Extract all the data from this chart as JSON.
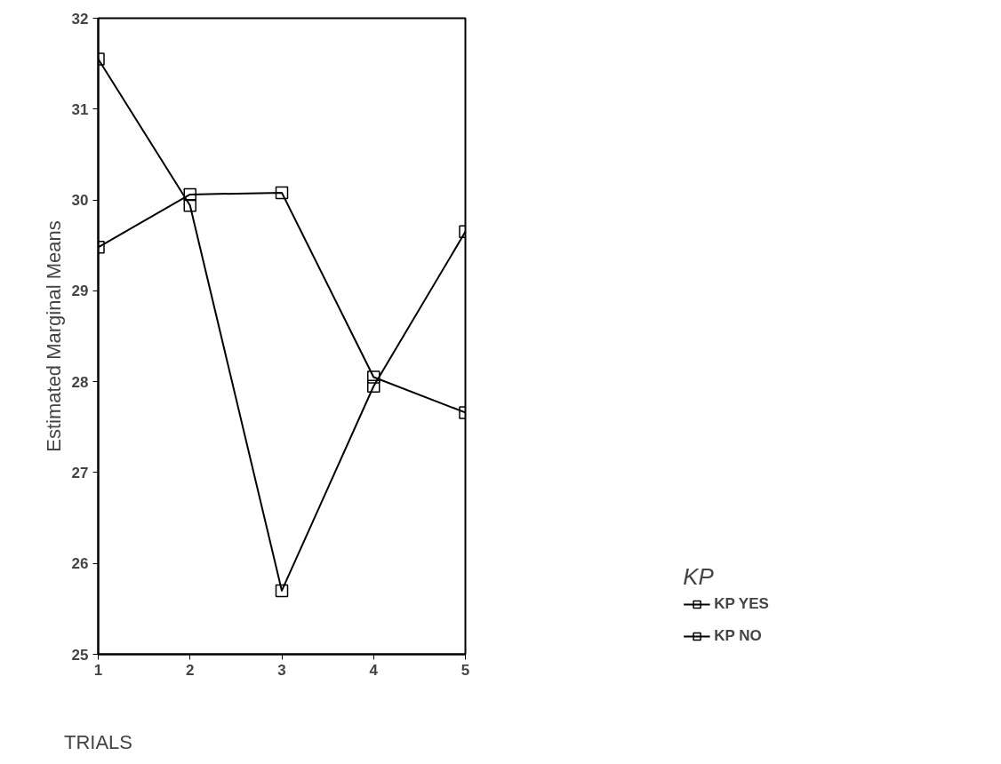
{
  "chart_data": {
    "type": "line",
    "xlabel": "TRIALS",
    "ylabel": "Estimated Marginal Means",
    "legend_title": "KP",
    "x": [
      1,
      2,
      3,
      4,
      5
    ],
    "series": [
      {
        "name": "KP YES",
        "color": "#000000",
        "values": [
          31.55,
          29.94,
          25.7,
          27.95,
          29.65
        ]
      },
      {
        "name": "KP NO",
        "color": "#000000",
        "values": [
          29.48,
          30.06,
          30.08,
          28.05,
          27.66
        ]
      }
    ],
    "xlim": [
      1,
      5
    ],
    "xticks": [
      1,
      2,
      3,
      4,
      5
    ],
    "ylim": [
      25,
      32
    ],
    "yticks": [
      25,
      26,
      27,
      28,
      29,
      30,
      31,
      32
    ],
    "grid": false,
    "legend": "right",
    "marker": "square",
    "line_style": "solid"
  }
}
